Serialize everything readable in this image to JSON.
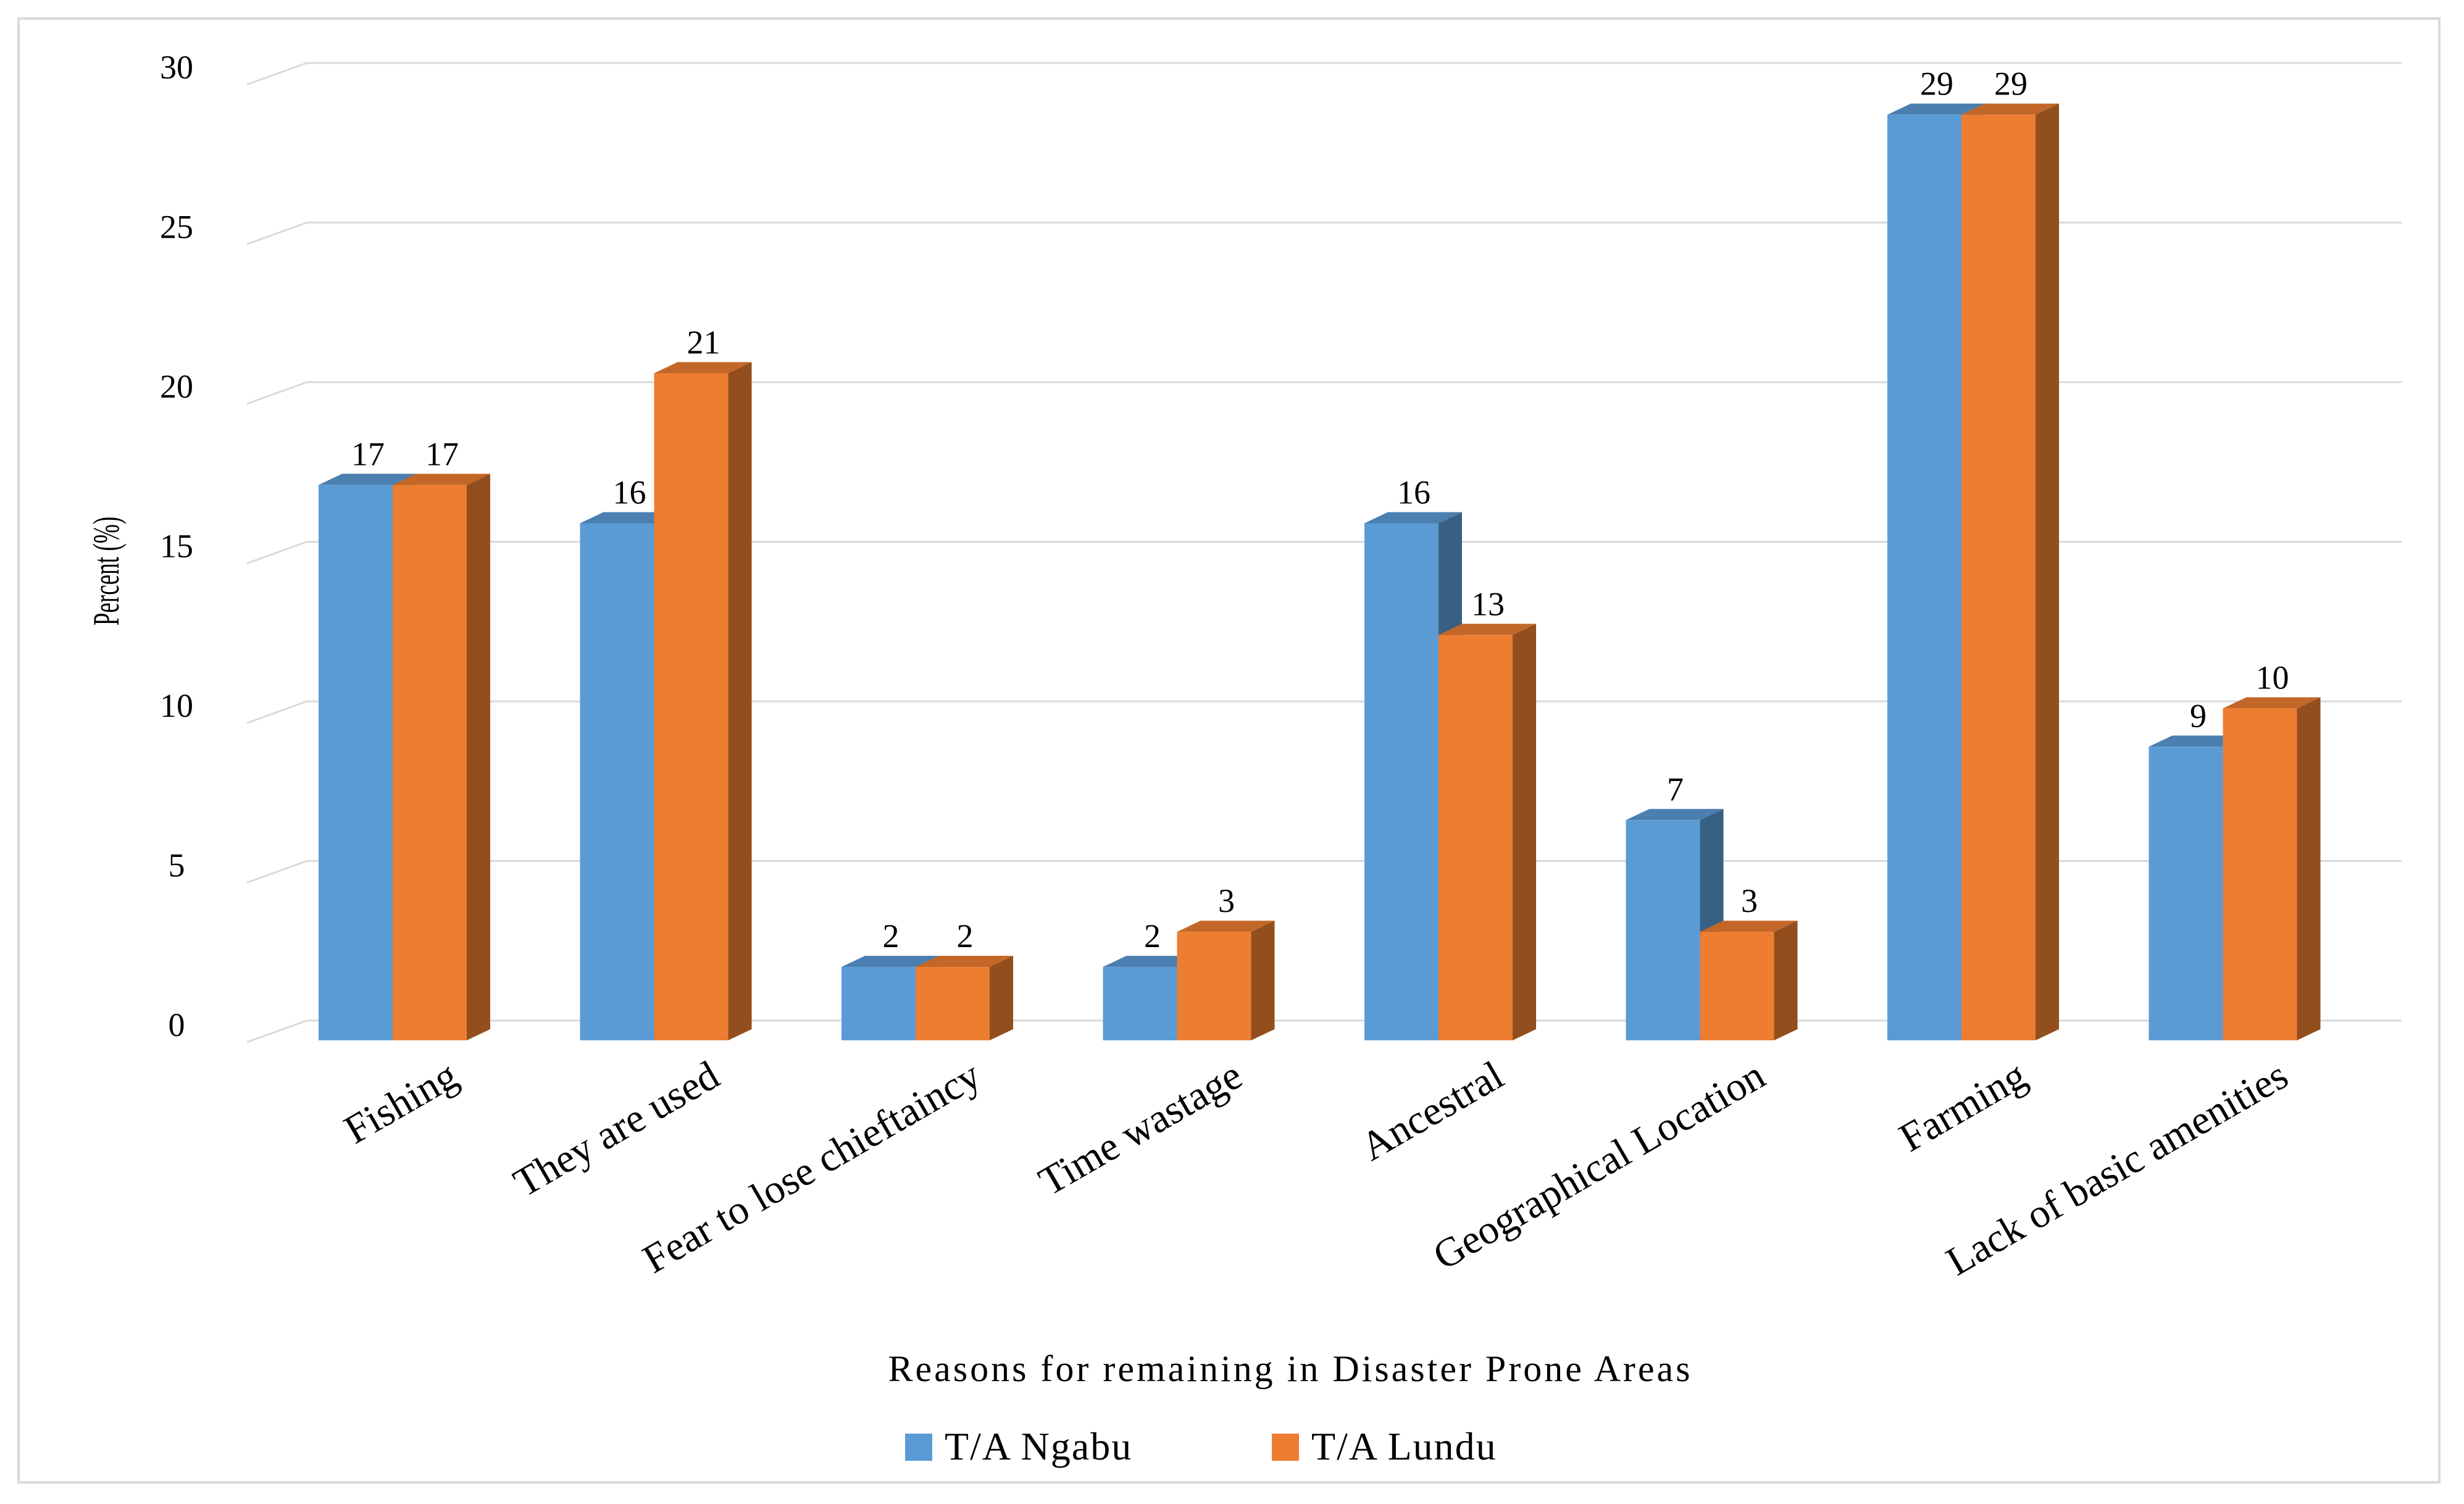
{
  "chart_data": {
    "type": "bar",
    "style": "3d-clustered-column",
    "title": "",
    "xlabel": "Reasons for remaining in Disaster Prone Areas",
    "ylabel": "Percent (%)",
    "ylim": [
      0,
      30
    ],
    "yticks": [
      0,
      5,
      10,
      15,
      20,
      25,
      30
    ],
    "grid": true,
    "legend_position": "bottom",
    "categories": [
      "Fishing",
      "They are used",
      "Fear to lose chieftaincy",
      "Time wastage",
      "Ancestral",
      "Geographical Location",
      "Farming",
      "Lack of basic amenities"
    ],
    "series": [
      {
        "name": "T/A Ngabu",
        "color": "#5b9bd5",
        "values": [
          17.4,
          16.2,
          2.3,
          2.3,
          16.2,
          6.9,
          29,
          9.2
        ],
        "labels": [
          "17",
          "16",
          "2",
          "2",
          "16",
          "7",
          "29",
          "9"
        ]
      },
      {
        "name": "T/A Lundu",
        "color": "#ed7d31",
        "values": [
          17.4,
          20.9,
          2.3,
          3.4,
          12.7,
          3.4,
          29,
          10.4
        ],
        "labels": [
          "17",
          "21",
          "2",
          "3",
          "13",
          "3",
          "29",
          "10"
        ]
      }
    ]
  }
}
